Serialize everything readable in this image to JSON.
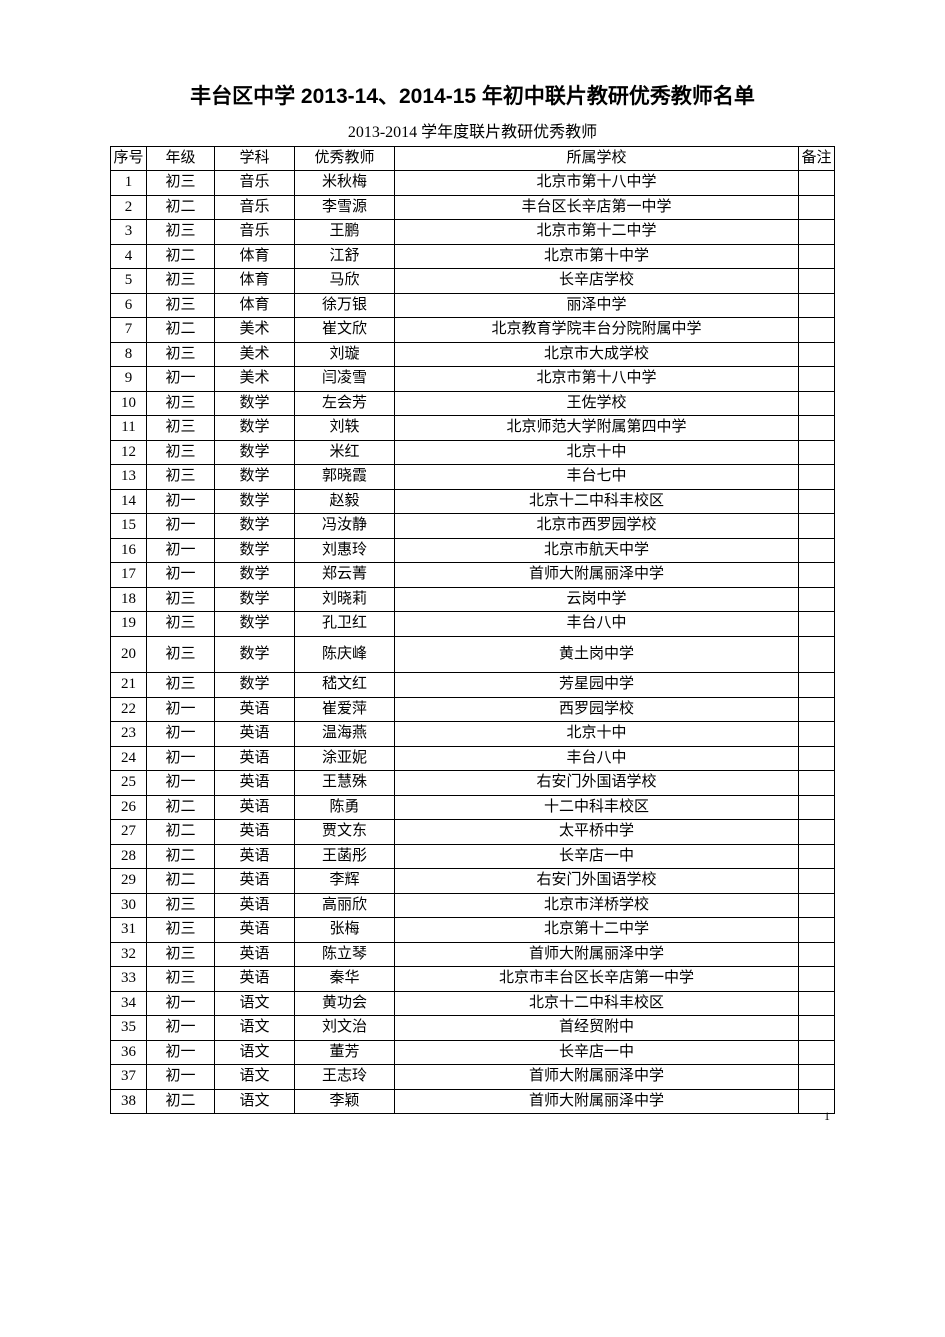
{
  "title": "丰台区中学 2013-14、2014-15 年初中联片教研优秀教师名单",
  "subtitle": "2013-2014 学年度联片教研优秀教师",
  "columns": {
    "seq": "序号",
    "grade": "年级",
    "subject": "学科",
    "teacher": "优秀教师",
    "school": "所属学校",
    "note": "备注"
  },
  "rows": [
    {
      "seq": "1",
      "grade": "初三",
      "subject": "音乐",
      "teacher": "米秋梅",
      "school": "北京市第十八中学",
      "note": ""
    },
    {
      "seq": "2",
      "grade": "初二",
      "subject": "音乐",
      "teacher": "李雪源",
      "school": "丰台区长辛店第一中学",
      "note": ""
    },
    {
      "seq": "3",
      "grade": "初三",
      "subject": "音乐",
      "teacher": "王鹏",
      "school": "北京市第十二中学",
      "note": ""
    },
    {
      "seq": "4",
      "grade": "初二",
      "subject": "体育",
      "teacher": "江舒",
      "school": "北京市第十中学",
      "note": ""
    },
    {
      "seq": "5",
      "grade": "初三",
      "subject": "体育",
      "teacher": "马欣",
      "school": "长辛店学校",
      "note": ""
    },
    {
      "seq": "6",
      "grade": "初三",
      "subject": "体育",
      "teacher": "徐万银",
      "school": "丽泽中学",
      "note": ""
    },
    {
      "seq": "7",
      "grade": "初二",
      "subject": "美术",
      "teacher": "崔文欣",
      "school": "北京教育学院丰台分院附属中学",
      "note": ""
    },
    {
      "seq": "8",
      "grade": "初三",
      "subject": "美术",
      "teacher": "刘璇",
      "school": "北京市大成学校",
      "note": ""
    },
    {
      "seq": "9",
      "grade": "初一",
      "subject": "美术",
      "teacher": "闫凌雪",
      "school": "北京市第十八中学",
      "note": ""
    },
    {
      "seq": "10",
      "grade": "初三",
      "subject": "数学",
      "teacher": "左会芳",
      "school": "王佐学校",
      "note": ""
    },
    {
      "seq": "11",
      "grade": "初三",
      "subject": "数学",
      "teacher": "刘轶",
      "school": "北京师范大学附属第四中学",
      "note": ""
    },
    {
      "seq": "12",
      "grade": "初三",
      "subject": "数学",
      "teacher": "米红",
      "school": "北京十中",
      "note": ""
    },
    {
      "seq": "13",
      "grade": "初三",
      "subject": "数学",
      "teacher": "郭晓霞",
      "school": "丰台七中",
      "note": ""
    },
    {
      "seq": "14",
      "grade": "初一",
      "subject": "数学",
      "teacher": "赵毅",
      "school": "北京十二中科丰校区",
      "note": ""
    },
    {
      "seq": "15",
      "grade": "初一",
      "subject": "数学",
      "teacher": "冯汝静",
      "school": "北京市西罗园学校",
      "note": ""
    },
    {
      "seq": "16",
      "grade": "初一",
      "subject": "数学",
      "teacher": "刘惠玲",
      "school": "北京市航天中学",
      "note": ""
    },
    {
      "seq": "17",
      "grade": "初一",
      "subject": "数学",
      "teacher": "郑云菁",
      "school": "首师大附属丽泽中学",
      "note": ""
    },
    {
      "seq": "18",
      "grade": "初三",
      "subject": "数学",
      "teacher": "刘晓莉",
      "school": "云岗中学",
      "note": ""
    },
    {
      "seq": "19",
      "grade": "初三",
      "subject": "数学",
      "teacher": "孔卫红",
      "school": "丰台八中",
      "note": ""
    },
    {
      "seq": "20",
      "grade": "初三",
      "subject": "数学",
      "teacher": "陈庆峰",
      "school": "黄土岗中学",
      "note": "",
      "tall": true
    },
    {
      "seq": "21",
      "grade": "初三",
      "subject": "数学",
      "teacher": "嵇文红",
      "school": "芳星园中学",
      "note": ""
    },
    {
      "seq": "22",
      "grade": "初一",
      "subject": "英语",
      "teacher": "崔爱萍",
      "school": "西罗园学校",
      "note": ""
    },
    {
      "seq": "23",
      "grade": "初一",
      "subject": "英语",
      "teacher": "温海燕",
      "school": "北京十中",
      "note": ""
    },
    {
      "seq": "24",
      "grade": "初一",
      "subject": "英语",
      "teacher": "涂亚妮",
      "school": "丰台八中",
      "note": ""
    },
    {
      "seq": "25",
      "grade": "初一",
      "subject": "英语",
      "teacher": "王慧殊",
      "school": "右安门外国语学校",
      "note": ""
    },
    {
      "seq": "26",
      "grade": "初二",
      "subject": "英语",
      "teacher": "陈勇",
      "school": "十二中科丰校区",
      "note": ""
    },
    {
      "seq": "27",
      "grade": "初二",
      "subject": "英语",
      "teacher": "贾文东",
      "school": "太平桥中学",
      "note": ""
    },
    {
      "seq": "28",
      "grade": "初二",
      "subject": "英语",
      "teacher": "王菡彤",
      "school": "长辛店一中",
      "note": ""
    },
    {
      "seq": "29",
      "grade": "初二",
      "subject": "英语",
      "teacher": "李辉",
      "school": "右安门外国语学校",
      "note": ""
    },
    {
      "seq": "30",
      "grade": "初三",
      "subject": "英语",
      "teacher": "高丽欣",
      "school": "北京市洋桥学校",
      "note": ""
    },
    {
      "seq": "31",
      "grade": "初三",
      "subject": "英语",
      "teacher": "张梅",
      "school": "北京第十二中学",
      "note": ""
    },
    {
      "seq": "32",
      "grade": "初三",
      "subject": "英语",
      "teacher": "陈立琴",
      "school": "首师大附属丽泽中学",
      "note": ""
    },
    {
      "seq": "33",
      "grade": "初三",
      "subject": "英语",
      "teacher": "秦华",
      "school": "北京市丰台区长辛店第一中学",
      "note": ""
    },
    {
      "seq": "34",
      "grade": "初一",
      "subject": "语文",
      "teacher": "黄功会",
      "school": "北京十二中科丰校区",
      "note": ""
    },
    {
      "seq": "35",
      "grade": "初一",
      "subject": "语文",
      "teacher": "刘文治",
      "school": "首经贸附中",
      "note": ""
    },
    {
      "seq": "36",
      "grade": "初一",
      "subject": "语文",
      "teacher": "董芳",
      "school": "长辛店一中",
      "note": ""
    },
    {
      "seq": "37",
      "grade": "初一",
      "subject": "语文",
      "teacher": "王志玲",
      "school": "首师大附属丽泽中学",
      "note": ""
    },
    {
      "seq": "38",
      "grade": "初二",
      "subject": "语文",
      "teacher": "李颖",
      "school": "首师大附属丽泽中学",
      "note": ""
    }
  ],
  "pageNumber": "1"
}
